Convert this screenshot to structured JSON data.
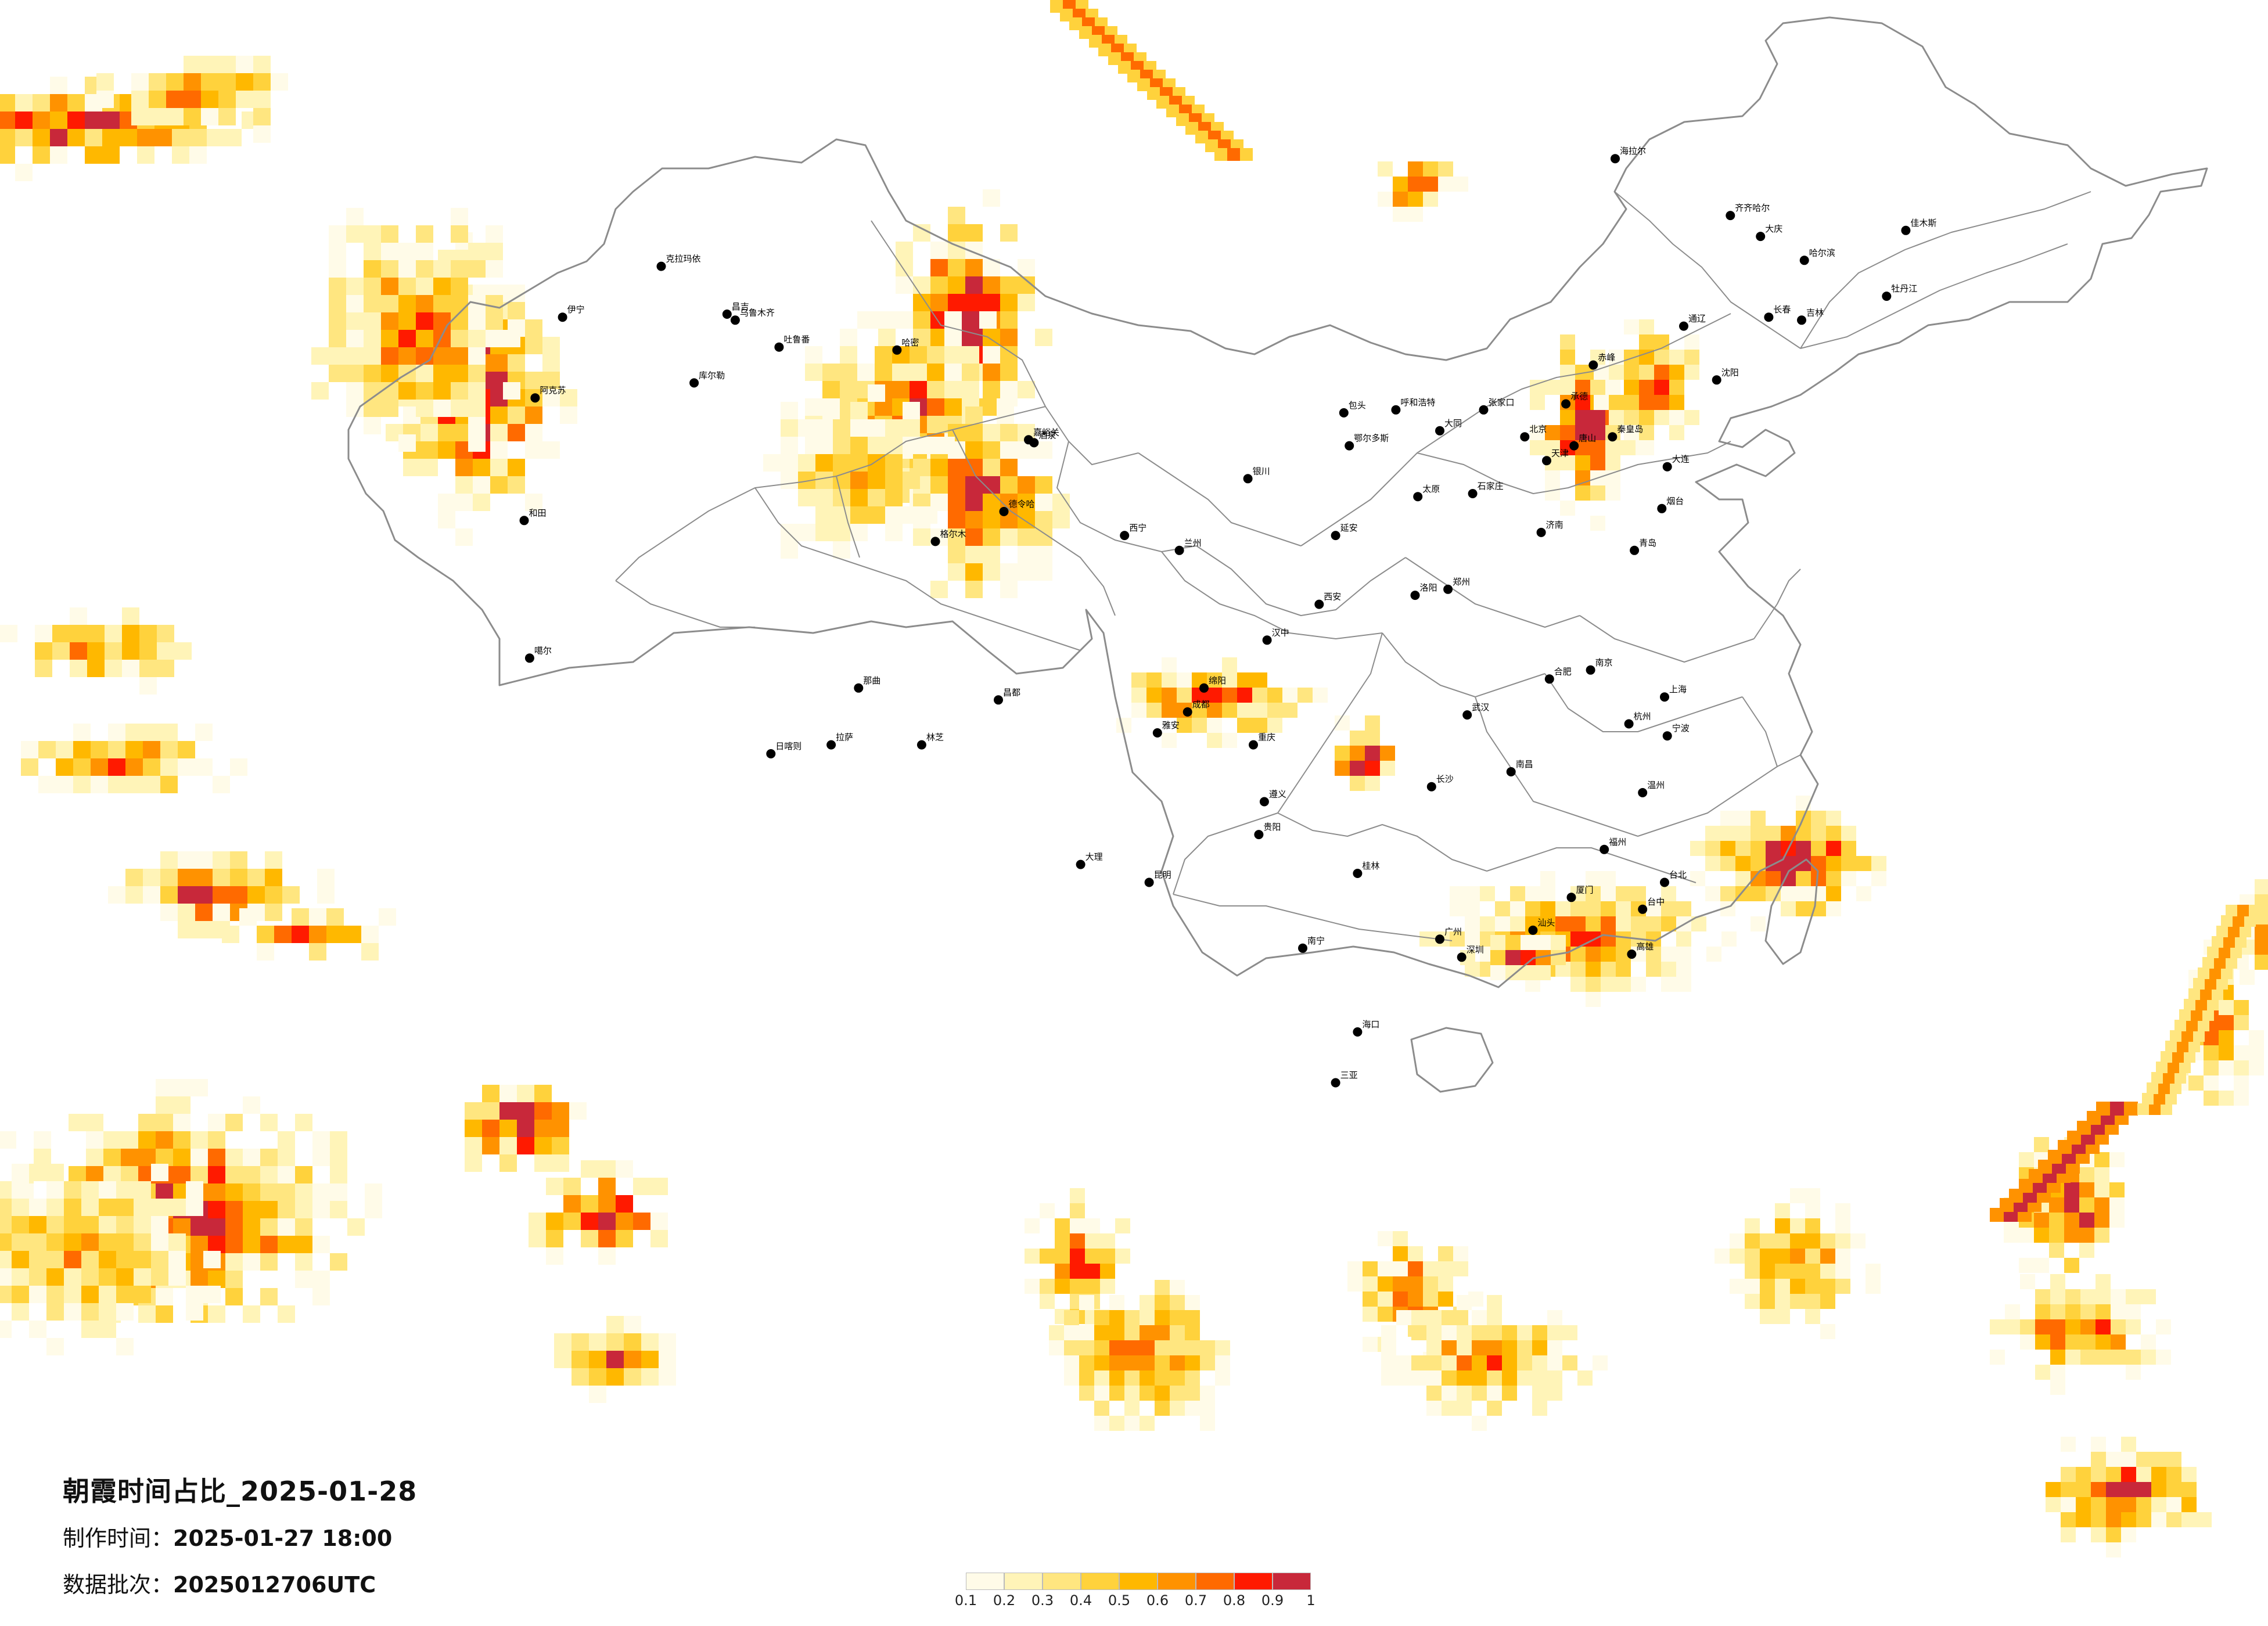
{
  "caption": {
    "title": "朝霞时间占比_2025-01-28",
    "made_label": "制作时间：",
    "made_value": "2025-01-27 18:00",
    "batch_label": "数据批次：",
    "batch_value": "2025012706UTC"
  },
  "legend": {
    "ticks": [
      "0.1",
      "0.2",
      "0.3",
      "0.4",
      "0.5",
      "0.6",
      "0.7",
      "0.8",
      "0.9",
      "1"
    ],
    "colors": [
      "#fffbe8",
      "#fff4b8",
      "#ffe680",
      "#ffd23c",
      "#ffb800",
      "#ff9200",
      "#ff6a00",
      "#ff1a00",
      "#c8283a"
    ]
  },
  "map_layers": {
    "palette_note": "",
    "border_color": "#8c8c8c",
    "city_color": "#000000"
  },
  "cities": [
    {
      "name": "克拉玛依",
      "x": 84.9,
      "y": 45.6
    },
    {
      "name": "昌吉",
      "x": 87.3,
      "y": 44.0
    },
    {
      "name": "乌鲁木齐",
      "x": 87.6,
      "y": 43.8
    },
    {
      "name": "吐鲁番",
      "x": 89.2,
      "y": 42.9
    },
    {
      "name": "哈密",
      "x": 93.5,
      "y": 42.8
    },
    {
      "name": "库尔勒",
      "x": 86.1,
      "y": 41.7
    },
    {
      "name": "阿克苏",
      "x": 80.3,
      "y": 41.2
    },
    {
      "name": "伊宁",
      "x": 81.3,
      "y": 43.9
    },
    {
      "name": "和田",
      "x": 79.9,
      "y": 37.1
    },
    {
      "name": "嘉峪关",
      "x": 98.3,
      "y": 39.8
    },
    {
      "name": "酒泉",
      "x": 98.5,
      "y": 39.7
    },
    {
      "name": "德令哈",
      "x": 97.4,
      "y": 37.4
    },
    {
      "name": "格尔木",
      "x": 94.9,
      "y": 36.4
    },
    {
      "name": "西宁",
      "x": 101.8,
      "y": 36.6
    },
    {
      "name": "兰州",
      "x": 103.8,
      "y": 36.1
    },
    {
      "name": "银川",
      "x": 106.3,
      "y": 38.5
    },
    {
      "name": "呼和浩特",
      "x": 111.7,
      "y": 40.8
    },
    {
      "name": "包头",
      "x": 109.8,
      "y": 40.7
    },
    {
      "name": "鄂尔多斯",
      "x": 110.0,
      "y": 39.6
    },
    {
      "name": "太原",
      "x": 112.5,
      "y": 37.9
    },
    {
      "name": "大同",
      "x": 113.3,
      "y": 40.1
    },
    {
      "name": "石家庄",
      "x": 114.5,
      "y": 38.0
    },
    {
      "name": "北京",
      "x": 116.4,
      "y": 39.9
    },
    {
      "name": "天津",
      "x": 117.2,
      "y": 39.1
    },
    {
      "name": "唐山",
      "x": 118.2,
      "y": 39.6
    },
    {
      "name": "张家口",
      "x": 114.9,
      "y": 40.8
    },
    {
      "name": "承德",
      "x": 117.9,
      "y": 41.0
    },
    {
      "name": "秦皇岛",
      "x": 119.6,
      "y": 39.9
    },
    {
      "name": "沈阳",
      "x": 123.4,
      "y": 41.8
    },
    {
      "name": "大连",
      "x": 121.6,
      "y": 38.9
    },
    {
      "name": "长春",
      "x": 125.3,
      "y": 43.9
    },
    {
      "name": "吉林",
      "x": 126.5,
      "y": 43.8
    },
    {
      "name": "哈尔滨",
      "x": 126.6,
      "y": 45.8
    },
    {
      "name": "齐齐哈尔",
      "x": 123.9,
      "y": 47.3
    },
    {
      "name": "大庆",
      "x": 125.0,
      "y": 46.6
    },
    {
      "name": "牡丹江",
      "x": 129.6,
      "y": 44.6
    },
    {
      "name": "佳木斯",
      "x": 130.3,
      "y": 46.8
    },
    {
      "name": "海拉尔",
      "x": 119.7,
      "y": 49.2
    },
    {
      "name": "通辽",
      "x": 122.2,
      "y": 43.6
    },
    {
      "name": "赤峰",
      "x": 118.9,
      "y": 42.3
    },
    {
      "name": "济南",
      "x": 117.0,
      "y": 36.7
    },
    {
      "name": "青岛",
      "x": 120.4,
      "y": 36.1
    },
    {
      "name": "烟台",
      "x": 121.4,
      "y": 37.5
    },
    {
      "name": "郑州",
      "x": 113.6,
      "y": 34.8
    },
    {
      "name": "洛阳",
      "x": 112.4,
      "y": 34.6
    },
    {
      "name": "西安",
      "x": 108.9,
      "y": 34.3
    },
    {
      "name": "延安",
      "x": 109.5,
      "y": 36.6
    },
    {
      "name": "汉中",
      "x": 107.0,
      "y": 33.1
    },
    {
      "name": "南京",
      "x": 118.8,
      "y": 32.1
    },
    {
      "name": "合肥",
      "x": 117.3,
      "y": 31.8
    },
    {
      "name": "上海",
      "x": 121.5,
      "y": 31.2
    },
    {
      "name": "杭州",
      "x": 120.2,
      "y": 30.3
    },
    {
      "name": "宁波",
      "x": 121.6,
      "y": 29.9
    },
    {
      "name": "温州",
      "x": 120.7,
      "y": 28.0
    },
    {
      "name": "武汉",
      "x": 114.3,
      "y": 30.6
    },
    {
      "name": "长沙",
      "x": 113.0,
      "y": 28.2
    },
    {
      "name": "南昌",
      "x": 115.9,
      "y": 28.7
    },
    {
      "name": "福州",
      "x": 119.3,
      "y": 26.1
    },
    {
      "name": "厦门",
      "x": 118.1,
      "y": 24.5
    },
    {
      "name": "广州",
      "x": 113.3,
      "y": 23.1
    },
    {
      "name": "深圳",
      "x": 114.1,
      "y": 22.5
    },
    {
      "name": "汕头",
      "x": 116.7,
      "y": 23.4
    },
    {
      "name": "南宁",
      "x": 108.3,
      "y": 22.8
    },
    {
      "name": "桂林",
      "x": 110.3,
      "y": 25.3
    },
    {
      "name": "海口",
      "x": 110.3,
      "y": 20.0
    },
    {
      "name": "三亚",
      "x": 109.5,
      "y": 18.3
    },
    {
      "name": "昆明",
      "x": 102.7,
      "y": 25.0
    },
    {
      "name": "大理",
      "x": 100.2,
      "y": 25.6
    },
    {
      "name": "贵阳",
      "x": 106.7,
      "y": 26.6
    },
    {
      "name": "遵义",
      "x": 106.9,
      "y": 27.7
    },
    {
      "name": "重庆",
      "x": 106.5,
      "y": 29.6
    },
    {
      "name": "成都",
      "x": 104.1,
      "y": 30.7
    },
    {
      "name": "绵阳",
      "x": 104.7,
      "y": 31.5
    },
    {
      "name": "雅安",
      "x": 103.0,
      "y": 30.0
    },
    {
      "name": "拉萨",
      "x": 91.1,
      "y": 29.6
    },
    {
      "name": "日喀则",
      "x": 88.9,
      "y": 29.3
    },
    {
      "name": "林芝",
      "x": 94.4,
      "y": 29.6
    },
    {
      "name": "昌都",
      "x": 97.2,
      "y": 31.1
    },
    {
      "name": "那曲",
      "x": 92.1,
      "y": 31.5
    },
    {
      "name": "噶尔",
      "x": 80.1,
      "y": 32.5
    },
    {
      "name": "台北",
      "x": 121.5,
      "y": 25.0
    },
    {
      "name": "台中",
      "x": 120.7,
      "y": 24.1
    },
    {
      "name": "高雄",
      "x": 120.3,
      "y": 22.6
    }
  ]
}
